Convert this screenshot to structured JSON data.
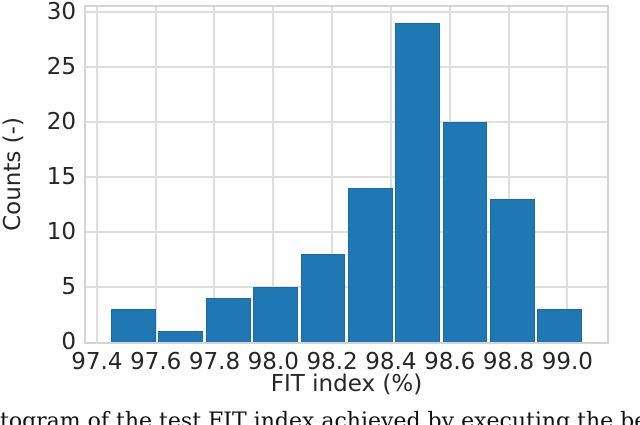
{
  "figure": {
    "caption_fragment": "togram of the test FIT index achieved by executing the best configuration"
  },
  "chart_data": {
    "type": "bar",
    "subtype": "histogram",
    "title": "",
    "xlabel": "FIT index (%)",
    "ylabel": "Counts (-)",
    "bin_start": 97.444,
    "bin_width": 0.1611,
    "counts": [
      3,
      1,
      4,
      5,
      8,
      14,
      29,
      20,
      13,
      3
    ],
    "x_ticks": [
      97.4,
      97.6,
      97.8,
      98.0,
      98.2,
      98.4,
      98.6,
      98.8,
      99.0
    ],
    "y_ticks": [
      0,
      5,
      10,
      15,
      20,
      25,
      30
    ],
    "xlim": [
      97.363,
      99.135
    ],
    "ylim": [
      0,
      30.45
    ],
    "grid": true,
    "legend": "none",
    "colors": {
      "bar_fill": "#1f77b4",
      "bar_edge": "#1a6aa3",
      "grid_line": "#dedede",
      "spine": "#d4d4d4",
      "text": "#262626"
    }
  }
}
